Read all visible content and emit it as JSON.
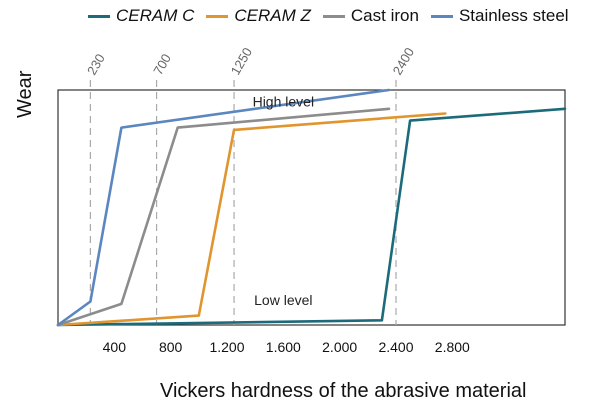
{
  "legend": [
    {
      "name": "CERAM C",
      "small_caps": true,
      "color": "#1c6b7a"
    },
    {
      "name": "CERAM Z",
      "small_caps": true,
      "color": "#e0952f"
    },
    {
      "name": "Cast iron",
      "small_caps": false,
      "color": "#8c8c8c"
    },
    {
      "name": "Stainless steel",
      "small_caps": false,
      "color": "#5b86c0"
    }
  ],
  "chart_data": {
    "type": "line",
    "title": "",
    "xlabel": "Vickers hardness of the abrasive material",
    "ylabel": "Wear",
    "xlim": [
      0,
      3600
    ],
    "ylim": [
      0,
      10
    ],
    "x_ticks": [
      400,
      800,
      1200,
      1600,
      2000,
      2400,
      2800
    ],
    "x_tick_labels": [
      "400",
      "800",
      "1.200",
      "1.600",
      "2.000",
      "2.400",
      "2.800"
    ],
    "reference_lines": [
      {
        "x": 230,
        "label": "230"
      },
      {
        "x": 700,
        "label": "700"
      },
      {
        "x": 1250,
        "label": "1250"
      },
      {
        "x": 2400,
        "label": "2400"
      }
    ],
    "annotations": [
      {
        "text": "High level",
        "x": 1600,
        "y": 9.3
      },
      {
        "text": "Low level",
        "x": 1600,
        "y": 0.85
      }
    ],
    "series": [
      {
        "name": "CERAM C",
        "color": "#1c6b7a",
        "x": [
          0,
          2300,
          2500,
          3600
        ],
        "y": [
          0,
          0.2,
          8.7,
          9.2
        ]
      },
      {
        "name": "CERAM Z",
        "color": "#e0952f",
        "x": [
          0,
          1000,
          1250,
          2750
        ],
        "y": [
          0,
          0.4,
          8.3,
          9.0
        ]
      },
      {
        "name": "Cast iron",
        "color": "#8c8c8c",
        "x": [
          0,
          450,
          850,
          2350
        ],
        "y": [
          0,
          0.9,
          8.4,
          9.2
        ]
      },
      {
        "name": "Stainless steel",
        "color": "#5b86c0",
        "x": [
          0,
          230,
          450,
          2350
        ],
        "y": [
          0,
          1.0,
          8.4,
          10.0
        ]
      }
    ]
  }
}
